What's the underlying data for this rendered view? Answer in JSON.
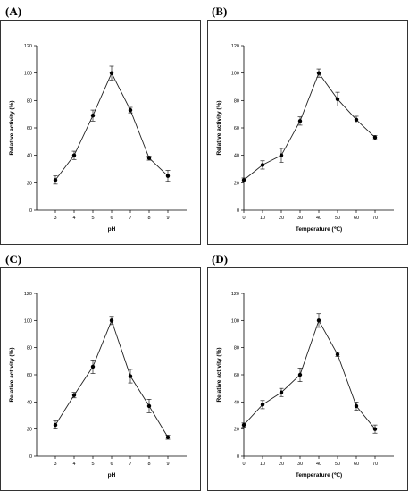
{
  "chart_data": [
    {
      "panel_label": "(A)",
      "type": "line",
      "xlabel": "pH",
      "ylabel": "Relative activity (%)",
      "x": [
        3,
        4,
        5,
        6,
        7,
        8,
        9
      ],
      "y": [
        22,
        40,
        69,
        100,
        73,
        38,
        25
      ],
      "err": [
        3,
        3,
        4,
        5,
        2,
        1.5,
        4
      ],
      "xticks": [
        3,
        4,
        5,
        6,
        7,
        8,
        9
      ],
      "yticks": [
        0,
        20,
        40,
        60,
        80,
        100,
        120
      ],
      "xlim": [
        2,
        10
      ],
      "ylim": [
        0,
        120
      ],
      "grid": false
    },
    {
      "panel_label": "(B)",
      "type": "line",
      "xlabel": "Temperature (℃)",
      "ylabel": "Relative activity (%)",
      "x": [
        0,
        10,
        20,
        30,
        40,
        50,
        60,
        70
      ],
      "y": [
        22,
        33,
        40,
        65,
        100,
        81,
        66,
        53
      ],
      "err": [
        1.5,
        3,
        5,
        3,
        3,
        5,
        2.5,
        1.5
      ],
      "xticks": [
        0,
        10,
        20,
        30,
        40,
        50,
        60,
        70
      ],
      "yticks": [
        0,
        20,
        40,
        60,
        80,
        100,
        120
      ],
      "xlim": [
        0,
        80
      ],
      "ylim": [
        0,
        120
      ],
      "grid": false
    },
    {
      "panel_label": "(C)",
      "type": "line",
      "xlabel": "pH",
      "ylabel": "Relative activity (%)",
      "x": [
        3,
        4,
        5,
        6,
        7,
        8,
        9
      ],
      "y": [
        23,
        45,
        66,
        100,
        59,
        37,
        14
      ],
      "err": [
        3,
        2,
        5,
        3,
        5,
        5,
        1.5
      ],
      "xticks": [
        3,
        4,
        5,
        6,
        7,
        8,
        9
      ],
      "yticks": [
        0,
        20,
        40,
        60,
        80,
        100,
        120
      ],
      "xlim": [
        2,
        10
      ],
      "ylim": [
        0,
        120
      ],
      "grid": false
    },
    {
      "panel_label": "(D)",
      "type": "line",
      "xlabel": "Temperature (℃)",
      "ylabel": "Relative activity (%)",
      "x": [
        0,
        10,
        20,
        30,
        40,
        50,
        60,
        70
      ],
      "y": [
        23,
        38,
        47,
        60,
        100,
        75,
        37,
        20
      ],
      "err": [
        1.5,
        3,
        3,
        5,
        5,
        1.5,
        3,
        3
      ],
      "xticks": [
        0,
        10,
        20,
        30,
        40,
        50,
        60,
        70
      ],
      "yticks": [
        0,
        20,
        40,
        60,
        80,
        100,
        120
      ],
      "xlim": [
        0,
        80
      ],
      "ylim": [
        0,
        120
      ],
      "grid": false
    }
  ]
}
